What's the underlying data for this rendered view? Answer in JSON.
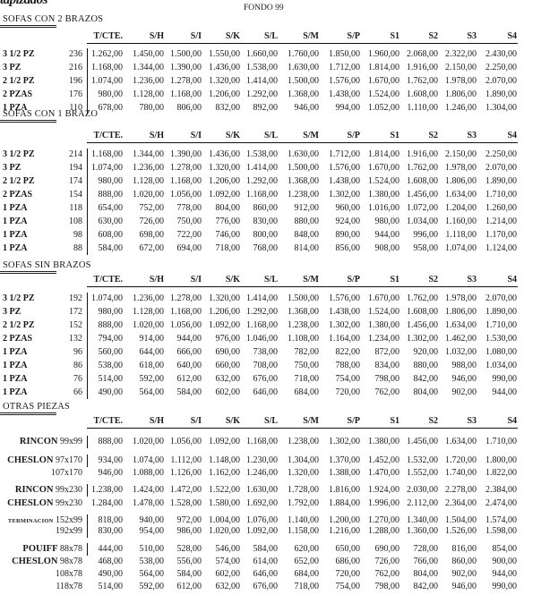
{
  "brand": {
    "logo_text": "tapizados"
  },
  "header": {
    "title": "FONDO 99"
  },
  "columns": [
    "T/CTE.",
    "S/H",
    "S/I",
    "S/K",
    "S/L",
    "S/M",
    "S/P",
    "S1",
    "S2",
    "S3",
    "S4"
  ],
  "sections": [
    {
      "title": "SOFAS CON 2 BRAZOS",
      "rows": [
        {
          "label": "3 1/2 PZ",
          "code": "236",
          "values": [
            "1.262,00",
            "1.450,00",
            "1.500,00",
            "1.550,00",
            "1.660,00",
            "1.760,00",
            "1.850,00",
            "1.960,00",
            "2.068,00",
            "2.322,00",
            "2.430,00"
          ]
        },
        {
          "label": "3 PZ",
          "code": "216",
          "values": [
            "1.168,00",
            "1.344,00",
            "1.390,00",
            "1.436,00",
            "1.538,00",
            "1.630,00",
            "1.712,00",
            "1.814,00",
            "1.916,00",
            "2.150,00",
            "2.250,00"
          ]
        },
        {
          "label": "2 1/2 PZ",
          "code": "196",
          "values": [
            "1.074,00",
            "1.236,00",
            "1.278,00",
            "1.320,00",
            "1.414,00",
            "1.500,00",
            "1.576,00",
            "1.670,00",
            "1.762,00",
            "1.978,00",
            "2.070,00"
          ]
        },
        {
          "label": "2 PZAS",
          "code": "176",
          "values": [
            "980,00",
            "1.128,00",
            "1.168,00",
            "1.206,00",
            "1.292,00",
            "1.368,00",
            "1.438,00",
            "1.524,00",
            "1.608,00",
            "1.806,00",
            "1.890,00"
          ]
        },
        {
          "label": "1 PZA",
          "code": "110",
          "values": [
            "678,00",
            "780,00",
            "806,00",
            "832,00",
            "892,00",
            "946,00",
            "994,00",
            "1.052,00",
            "1.110,00",
            "1.246,00",
            "1.304,00"
          ]
        }
      ]
    },
    {
      "title": "SOFAS CON 1 BRAZO",
      "rows": [
        {
          "label": "3 1/2 PZ",
          "code": "214",
          "values": [
            "1.168,00",
            "1.344,00",
            "1.390,00",
            "1.436,00",
            "1.538,00",
            "1.630,00",
            "1.712,00",
            "1.814,00",
            "1.916,00",
            "2.150,00",
            "2.250,00"
          ]
        },
        {
          "label": "3 PZ",
          "code": "194",
          "values": [
            "1.074,00",
            "1.236,00",
            "1.278,00",
            "1.320,00",
            "1.414,00",
            "1.500,00",
            "1.576,00",
            "1.670,00",
            "1.762,00",
            "1.978,00",
            "2.070,00"
          ]
        },
        {
          "label": "2 1/2 PZ",
          "code": "174",
          "values": [
            "980,00",
            "1.128,00",
            "1.168,00",
            "1.206,00",
            "1.292,00",
            "1.368,00",
            "1.438,00",
            "1.524,00",
            "1.608,00",
            "1.806,00",
            "1.890,00"
          ]
        },
        {
          "label": "2 PZAS",
          "code": "154",
          "values": [
            "888,00",
            "1.020,00",
            "1.056,00",
            "1.092,00",
            "1.168,00",
            "1.238,00",
            "1.302,00",
            "1.380,00",
            "1.456,00",
            "1.634,00",
            "1.710,00"
          ]
        },
        {
          "label": "1 PZA",
          "code": "118",
          "values": [
            "654,00",
            "752,00",
            "778,00",
            "804,00",
            "860,00",
            "912,00",
            "960,00",
            "1.016,00",
            "1.072,00",
            "1.204,00",
            "1.260,00"
          ]
        },
        {
          "label": "1 PZA",
          "code": "108",
          "values": [
            "630,00",
            "726,00",
            "750,00",
            "776,00",
            "830,00",
            "880,00",
            "924,00",
            "980,00",
            "1.034,00",
            "1.160,00",
            "1.214,00"
          ]
        },
        {
          "label": "1 PZA",
          "code": "98",
          "values": [
            "608,00",
            "698,00",
            "722,00",
            "746,00",
            "800,00",
            "848,00",
            "890,00",
            "944,00",
            "996,00",
            "1.118,00",
            "1.170,00"
          ]
        },
        {
          "label": "1 PZA",
          "code": "88",
          "values": [
            "584,00",
            "672,00",
            "694,00",
            "718,00",
            "768,00",
            "814,00",
            "856,00",
            "908,00",
            "958,00",
            "1.074,00",
            "1.124,00"
          ]
        }
      ]
    },
    {
      "title": "SOFAS SIN BRAZOS",
      "rows": [
        {
          "label": "3 1/2 PZ",
          "code": "192",
          "values": [
            "1.074,00",
            "1.236,00",
            "1.278,00",
            "1.320,00",
            "1.414,00",
            "1.500,00",
            "1.576,00",
            "1.670,00",
            "1.762,00",
            "1.978,00",
            "2.070,00"
          ]
        },
        {
          "label": "3 PZ",
          "code": "172",
          "values": [
            "980,00",
            "1.128,00",
            "1.168,00",
            "1.206,00",
            "1.292,00",
            "1.368,00",
            "1.438,00",
            "1.524,00",
            "1.608,00",
            "1.806,00",
            "1.890,00"
          ]
        },
        {
          "label": "2 1/2 PZ",
          "code": "152",
          "values": [
            "888,00",
            "1.020,00",
            "1.056,00",
            "1.092,00",
            "1.168,00",
            "1.238,00",
            "1.302,00",
            "1.380,00",
            "1.456,00",
            "1.634,00",
            "1.710,00"
          ]
        },
        {
          "label": "2 PZAS",
          "code": "132",
          "values": [
            "794,00",
            "914,00",
            "944,00",
            "976,00",
            "1.046,00",
            "1.108,00",
            "1.164,00",
            "1.234,00",
            "1.302,00",
            "1.462,00",
            "1.530,00"
          ]
        },
        {
          "label": "1 PZA",
          "code": "96",
          "values": [
            "560,00",
            "644,00",
            "666,00",
            "690,00",
            "738,00",
            "782,00",
            "822,00",
            "872,00",
            "920,00",
            "1.032,00",
            "1.080,00"
          ]
        },
        {
          "label": "1 PZA",
          "code": "86",
          "values": [
            "538,00",
            "618,00",
            "640,00",
            "660,00",
            "708,00",
            "750,00",
            "788,00",
            "834,00",
            "880,00",
            "988,00",
            "1.034,00"
          ]
        },
        {
          "label": "1 PZA",
          "code": "76",
          "values": [
            "514,00",
            "592,00",
            "612,00",
            "632,00",
            "676,00",
            "718,00",
            "754,00",
            "798,00",
            "842,00",
            "946,00",
            "990,00"
          ]
        },
        {
          "label": "1 PZA",
          "code": "66",
          "values": [
            "490,00",
            "564,00",
            "584,00",
            "602,00",
            "646,00",
            "684,00",
            "720,00",
            "762,00",
            "804,00",
            "902,00",
            "944,00"
          ]
        }
      ]
    },
    {
      "title": "OTRAS PIEZAS",
      "rows": [
        {
          "label": "RINCON",
          "code": "99x99",
          "values": [
            "888,00",
            "1.020,00",
            "1.056,00",
            "1.092,00",
            "1.168,00",
            "1.238,00",
            "1.302,00",
            "1.380,00",
            "1.456,00",
            "1.634,00",
            "1.710,00"
          ]
        },
        {
          "label": "CHESLON",
          "code": "97x170",
          "values": [
            "934,00",
            "1.074,00",
            "1.112,00",
            "1.148,00",
            "1.230,00",
            "1.304,00",
            "1.370,00",
            "1.452,00",
            "1.532,00",
            "1.720,00",
            "1.800,00"
          ]
        },
        {
          "label": "",
          "code": "107x170",
          "values": [
            "946,00",
            "1.088,00",
            "1.126,00",
            "1.162,00",
            "1.246,00",
            "1.320,00",
            "1.388,00",
            "1.470,00",
            "1.552,00",
            "1.740,00",
            "1.822,00"
          ]
        },
        {
          "label": "RINCON",
          "code": "99x230",
          "values": [
            "1.238,00",
            "1.424,00",
            "1.472,00",
            "1.522,00",
            "1.630,00",
            "1.728,00",
            "1.816,00",
            "1.924,00",
            "2.030,00",
            "2.278,00",
            "2.384,00"
          ]
        },
        {
          "label": "CHESLON",
          "code": "99x230",
          "values": [
            "1.284,00",
            "1.478,00",
            "1.528,00",
            "1.580,00",
            "1.692,00",
            "1.792,00",
            "1.884,00",
            "1.996,00",
            "2.112,00",
            "2.364,00",
            "2.474,00"
          ]
        },
        {
          "label": "TERMINACION",
          "code": "152x99",
          "values": [
            "818,00",
            "940,00",
            "972,00",
            "1.004,00",
            "1.076,00",
            "1.140,00",
            "1.200,00",
            "1.270,00",
            "1.340,00",
            "1.504,00",
            "1.574,00"
          ]
        },
        {
          "label": "",
          "code": "192x99",
          "values": [
            "830,00",
            "954,00",
            "986,00",
            "1.020,00",
            "1.092,00",
            "1.158,00",
            "1.216,00",
            "1.288,00",
            "1.360,00",
            "1.526,00",
            "1.598,00"
          ]
        },
        {
          "label": "POUIFF",
          "code": "88x78",
          "values": [
            "444,00",
            "510,00",
            "528,00",
            "546,00",
            "584,00",
            "620,00",
            "650,00",
            "690,00",
            "728,00",
            "816,00",
            "854,00"
          ]
        },
        {
          "label": "CHESLON",
          "code": "98x78",
          "values": [
            "468,00",
            "538,00",
            "556,00",
            "574,00",
            "614,00",
            "652,00",
            "686,00",
            "726,00",
            "766,00",
            "860,00",
            "900,00"
          ]
        },
        {
          "label": "",
          "code": "108x78",
          "values": [
            "490,00",
            "564,00",
            "584,00",
            "602,00",
            "646,00",
            "684,00",
            "720,00",
            "762,00",
            "804,00",
            "902,00",
            "944,00"
          ]
        },
        {
          "label": "",
          "code": "118x78",
          "values": [
            "514,00",
            "592,00",
            "612,00",
            "632,00",
            "676,00",
            "718,00",
            "754,00",
            "798,00",
            "842,00",
            "946,00",
            "990,00"
          ]
        }
      ]
    }
  ]
}
